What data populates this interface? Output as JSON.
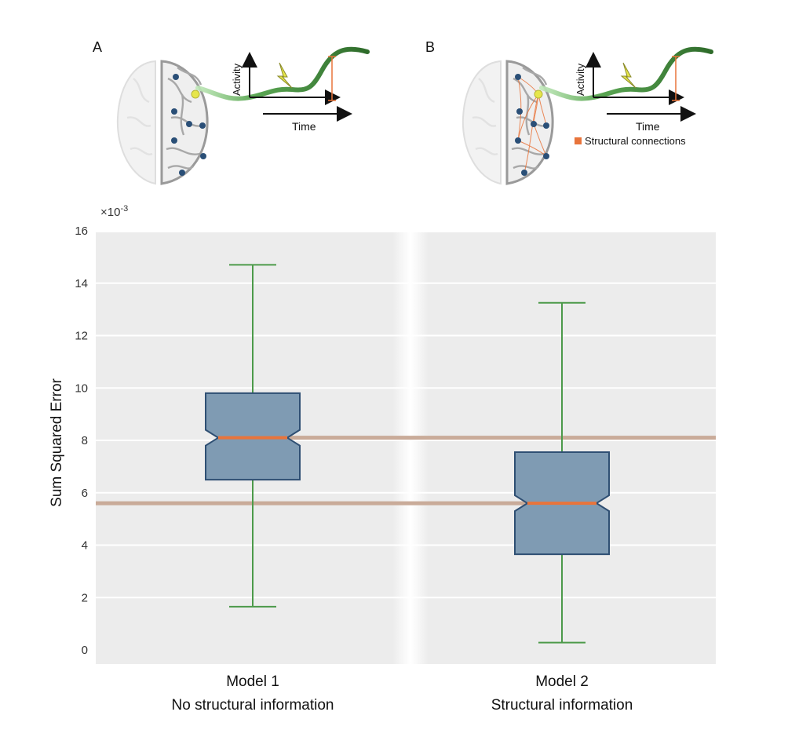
{
  "panels": [
    {
      "letter": "A",
      "activity_label": "Activity",
      "time_label": "Time"
    },
    {
      "letter": "B",
      "activity_label": "Activity",
      "time_label": "Time",
      "legend": "Structural connections"
    }
  ],
  "colors": {
    "box_fill": "#7f9bb3",
    "box_edge": "#2f4f73",
    "whisker": "#4c9a4a",
    "median": "#e8743b",
    "reference_line": "#c9ab99",
    "plot_bg": "#ececec",
    "brain_node": "#2a4f77",
    "brain_highlight": "#e6e64a",
    "signal": "#2e6b2a",
    "structural": "#e8743b"
  },
  "chart_data": {
    "type": "box",
    "exponent_label": "×10",
    "exponent_power": "-3",
    "ylabel": "Sum Squared Error",
    "ylim": [
      0,
      16
    ],
    "yticks": [
      "0",
      "2",
      "4",
      "6",
      "8",
      "10",
      "12",
      "14",
      "16"
    ],
    "grid": true,
    "notched": true,
    "categories": [
      {
        "line1": "Model 1",
        "line2": "No structural information"
      },
      {
        "line1": "Model 2",
        "line2": "Structural information"
      }
    ],
    "boxes": [
      {
        "whisker_low": 1.65,
        "q1": 6.5,
        "median": 8.1,
        "q3": 9.8,
        "whisker_high": 14.7,
        "notch": 0.3
      },
      {
        "whisker_low": 0.28,
        "q1": 3.65,
        "median": 5.6,
        "q3": 7.55,
        "whisker_high": 13.25,
        "notch": 0.3
      }
    ],
    "reference_lines": [
      {
        "value": 8.1,
        "from_category": 0,
        "extends": "right"
      },
      {
        "value": 5.6,
        "from_category": 1,
        "extends": "left"
      }
    ]
  }
}
